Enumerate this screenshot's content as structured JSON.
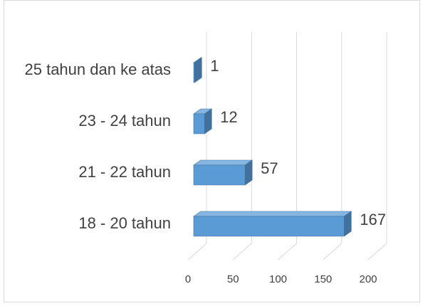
{
  "chart_data": {
    "type": "bar3d",
    "orientation": "horizontal",
    "categories": [
      "18 - 20 tahun",
      "21 - 22 tahun",
      "23 - 24 tahun",
      "25 tahun dan ke atas"
    ],
    "values": [
      167,
      57,
      12,
      1
    ],
    "color": "#5b9bd5",
    "xlim": [
      0,
      200
    ],
    "xticks": [
      0,
      50,
      100,
      150,
      200
    ],
    "grid": true
  }
}
